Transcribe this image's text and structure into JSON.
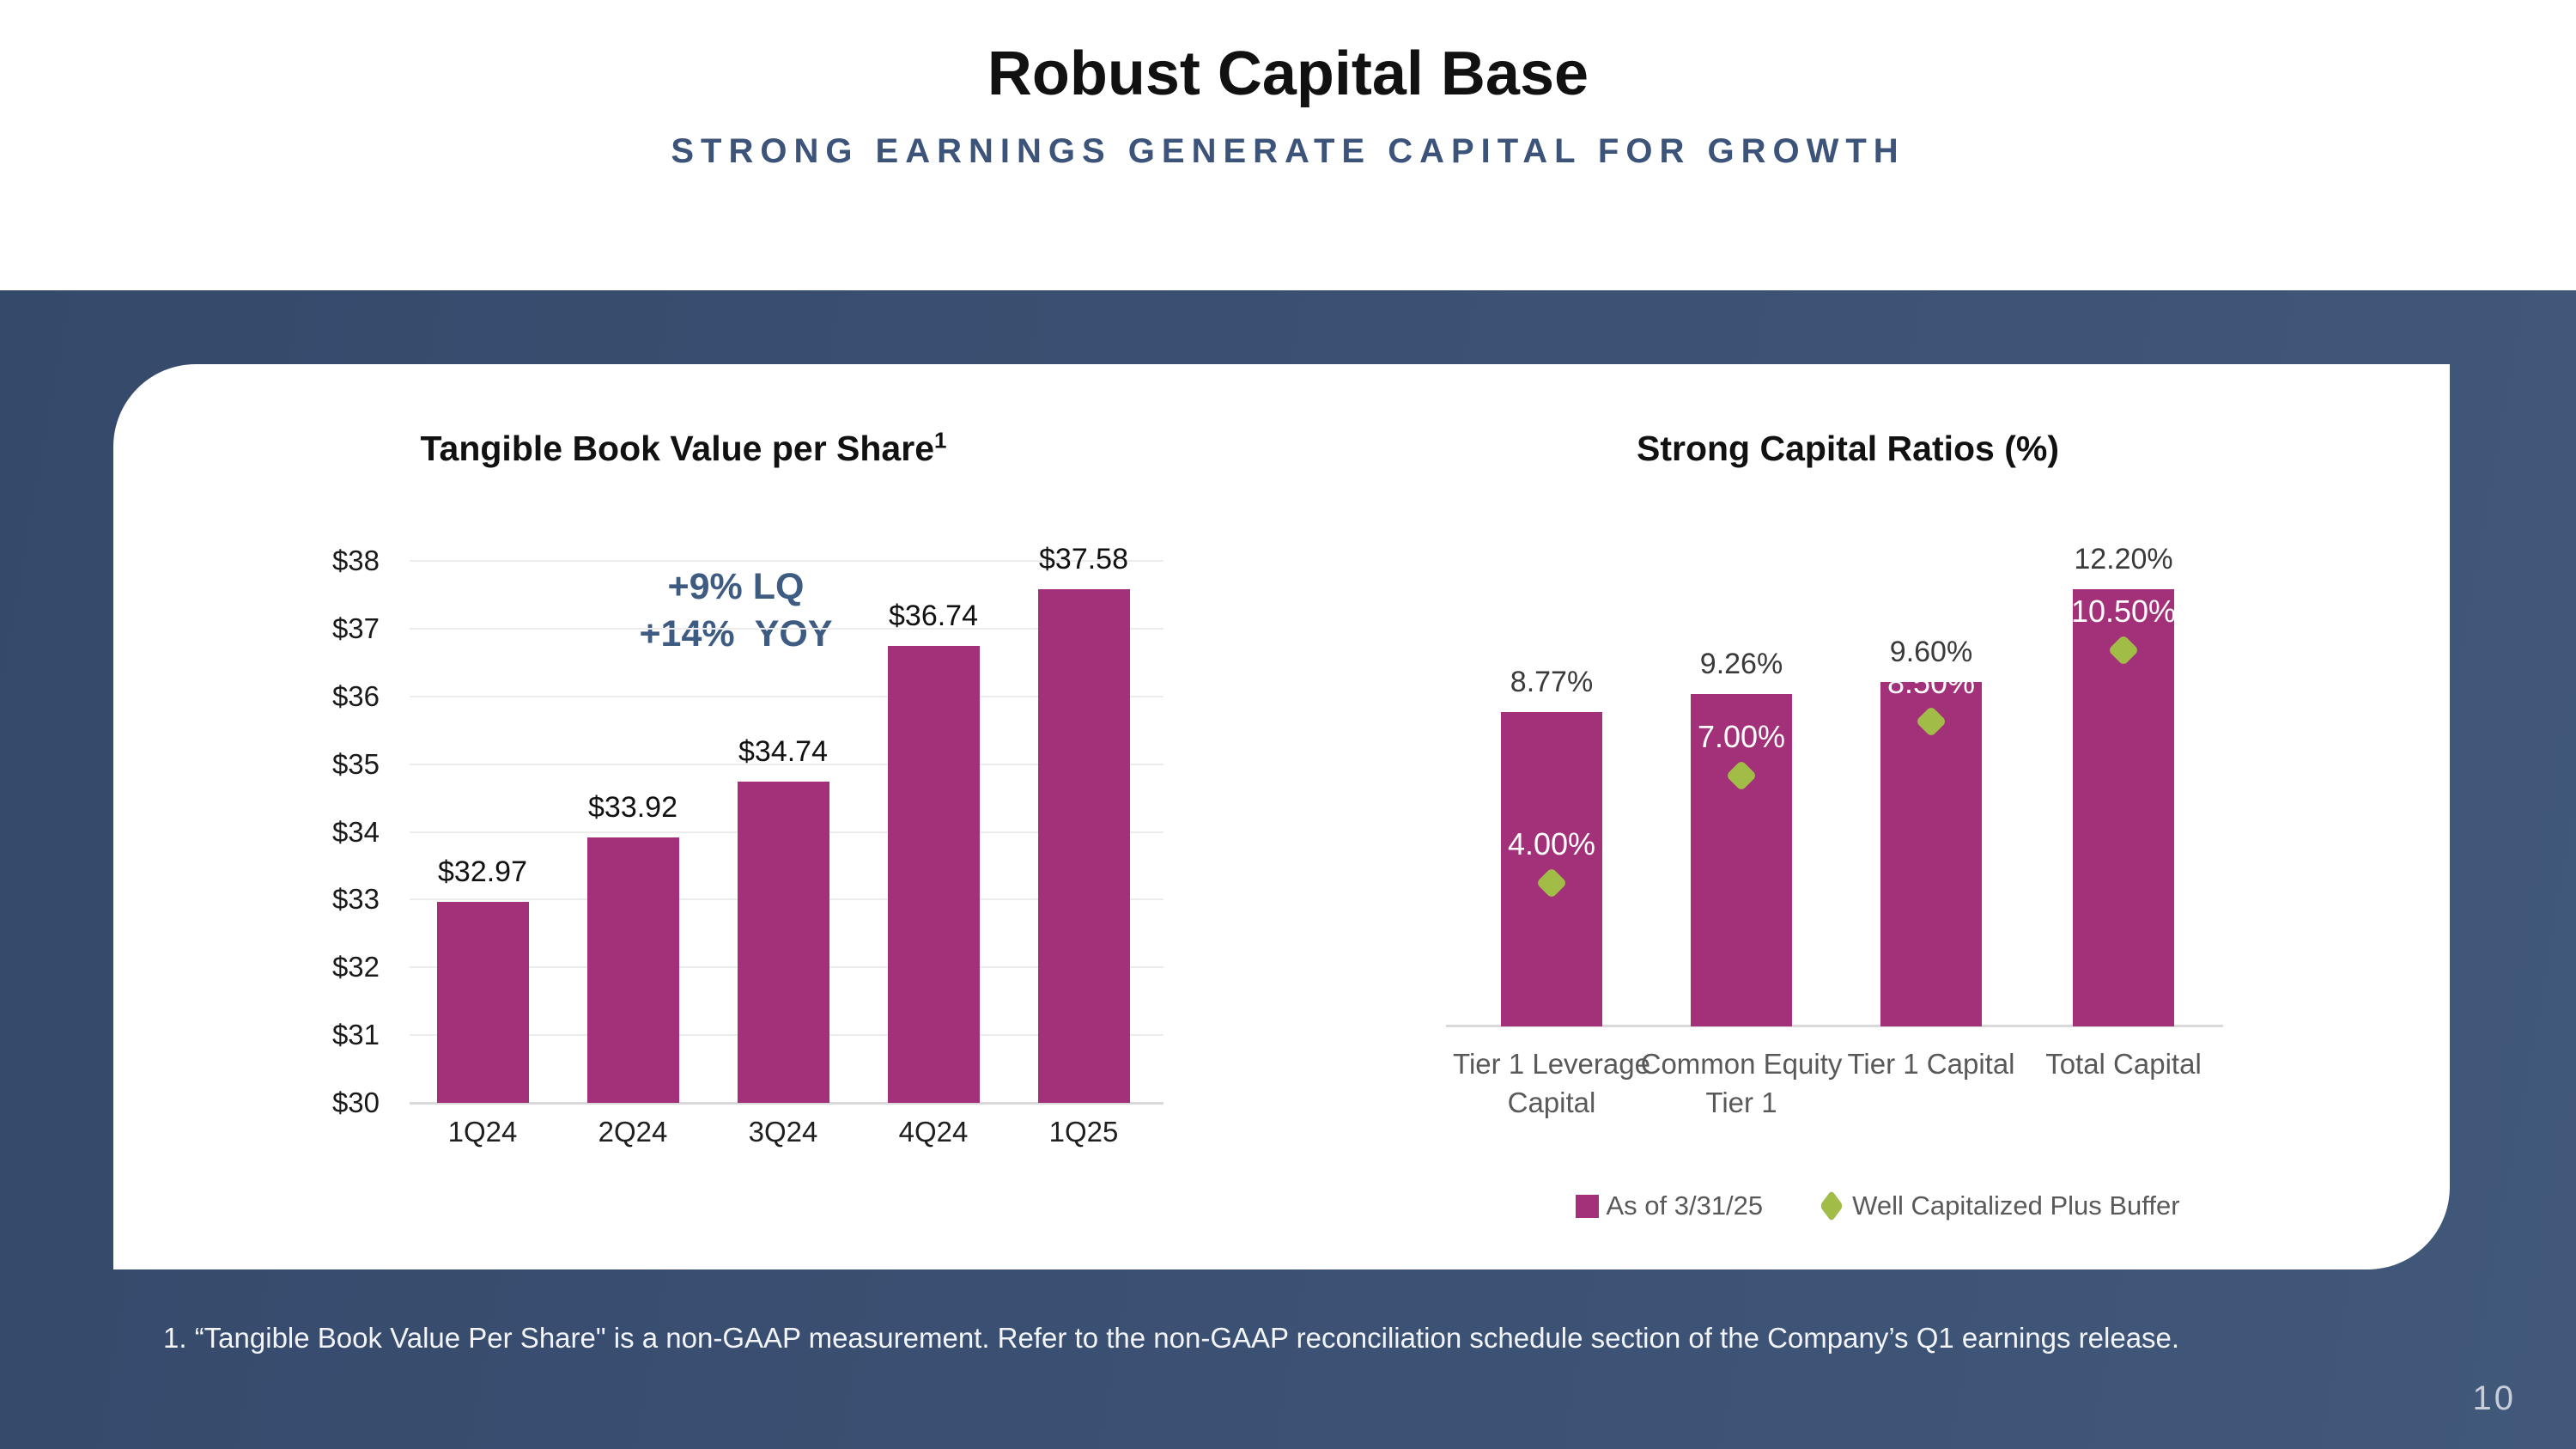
{
  "slide": {
    "title": "Robust Capital Base",
    "subtitle": "STRONG EARNINGS GENERATE CAPITAL FOR GROWTH",
    "footnote": "1. “Tangible Book Value Per Share\" is a non-GAAP measurement. Refer to the non-GAAP reconciliation schedule section of the Company’s Q1 earnings release.",
    "page_number": "10"
  },
  "colors": {
    "title_text": "#111111",
    "subtitle_text": "#3C537A",
    "band_navy_left": "#35496B",
    "band_navy_right": "#41587A",
    "card_background": "#FFFFFF",
    "bar_magenta": "#A23179",
    "marker_green": "#A2BC48",
    "gridline": "#ECECEC",
    "axis_line": "#D9D9D9",
    "axis_label": "#1A1A1A",
    "value_label": "#111111",
    "category_label": "#595959",
    "bar_top_label": "#3A3A3A",
    "in_bar_label": "#FFFFFF",
    "annotation_blue": "#3E5B82",
    "legend_text": "#595959",
    "footnote_text": "#F2F4F8",
    "page_number_text": "#C7CEDA"
  },
  "chart_data": [
    {
      "type": "bar",
      "title": "Tangible Book Value per Share",
      "title_superscript": "1",
      "categories": [
        "1Q24",
        "2Q24",
        "3Q24",
        "4Q24",
        "1Q25"
      ],
      "values": [
        32.97,
        33.92,
        34.74,
        36.74,
        37.58
      ],
      "value_labels": [
        "$32.97",
        "$33.92",
        "$34.74",
        "$36.74",
        "$37.58"
      ],
      "annotation": [
        "+9% LQ",
        "+14%  YOY"
      ],
      "ylabel": "",
      "xlabel": "",
      "ylim": [
        30,
        38
      ],
      "y_ticks": [
        "$30",
        "$31",
        "$32",
        "$33",
        "$34",
        "$35",
        "$36",
        "$37",
        "$38"
      ],
      "grid": true,
      "bar_color": "#A23179",
      "legend_position": "none"
    },
    {
      "type": "bar",
      "title": "Strong Capital Ratios (%)",
      "categories": [
        "Tier 1 Leverage\nCapital",
        "Common Equity\nTier 1",
        "Tier 1 Capital",
        "Total Capital"
      ],
      "series": [
        {
          "name": "As of 3/31/25",
          "type": "bar",
          "values": [
            8.77,
            9.26,
            9.6,
            12.2
          ],
          "labels": [
            "8.77%",
            "9.26%",
            "9.60%",
            "12.20%"
          ],
          "color": "#A23179"
        },
        {
          "name": "Well Capitalized Plus Buffer",
          "type": "point",
          "marker": "diamond",
          "values": [
            4.0,
            7.0,
            8.5,
            10.5
          ],
          "labels": [
            "4.00%",
            "7.00%",
            "8.50%",
            "10.50%"
          ],
          "color": "#A2BC48"
        }
      ],
      "ylim": [
        0,
        13
      ],
      "grid": false,
      "legend_position": "bottom"
    }
  ]
}
